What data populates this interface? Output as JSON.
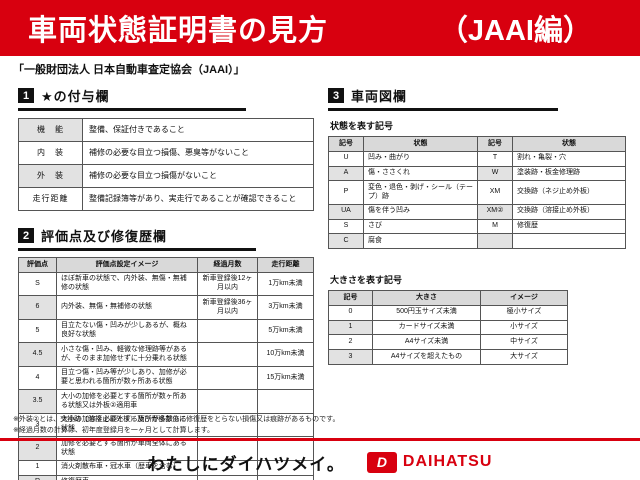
{
  "header": {
    "title": "車両状態証明書の見方",
    "edition": "（JAAI編）"
  },
  "subtitle": "「一般財団法人 日本自動車査定協会（JAAI）」",
  "section1": {
    "number": "1",
    "title": "★の付与欄",
    "table": {
      "rows": [
        [
          "機　能",
          "整備、保証付きであること"
        ],
        [
          "内　装",
          "補修の必要な目立つ損傷、悪臭等がないこと"
        ],
        [
          "外　装",
          "補修の必要な目立つ損傷がないこと"
        ],
        [
          "走行距離",
          "整備記録簿等があり、実走行であることが確認できること"
        ]
      ]
    }
  },
  "section2": {
    "number": "2",
    "title": "評価点及び修復歴欄",
    "table": {
      "headers": [
        "評価点",
        "評価点設定イメージ",
        "経過月数",
        "走行距離"
      ],
      "rows": [
        [
          "S",
          "ほぼ新車の状態で、内外装、無傷・無補修の状態",
          "新車登録後12ヶ月以内",
          "1万km未満"
        ],
        [
          "6",
          "内外装、無傷・無補修の状態",
          "新車登録後36ヶ月以内",
          "3万km未満"
        ],
        [
          "5",
          "目立たない傷・凹みが少しあるが、概ね良好な状態",
          "",
          "5万km未満"
        ],
        [
          "4.5",
          "小さな傷・凹み、軽微な修理跡等があるが、そのまま加修せずに十分乗れる状態",
          "",
          "10万km未満"
        ],
        [
          "4",
          "目立つ傷・凹み等が少しあり、加修が必要と思われる箇所が数ヶ所ある状態",
          "",
          "15万km未満"
        ],
        [
          "3.5",
          "大小の加修を必要とする箇所が数ヶ所ある状態又は外板②適用車",
          "",
          ""
        ],
        [
          "3",
          "大小の加修を必要とする箇所が多数ある状態",
          "",
          ""
        ],
        [
          "2",
          "加修を必要とする箇所が車両全体にある状態",
          "",
          ""
        ],
        [
          "1",
          "消火剤散布車・冠水車（歴車を含む）",
          "",
          ""
        ],
        [
          "R",
          "修復歴車",
          "",
          ""
        ]
      ]
    }
  },
  "section3": {
    "number": "3",
    "title": "車両図欄",
    "symbols_title": "状態を表す記号",
    "symbols_table": {
      "headers": [
        "記号",
        "状態",
        "記号",
        "状態"
      ],
      "rows": [
        [
          "U",
          "凹み・曲がり",
          "T",
          "割れ・亀裂・穴"
        ],
        [
          "A",
          "傷・ささくれ",
          "W",
          "塗装跡・板金修理跡"
        ],
        [
          "P",
          "変色・退色・剥げ・シール（テープ）跡",
          "XM",
          "交換跡（ネジ止め外板）"
        ],
        [
          "UA",
          "傷を伴う凹み",
          "XM②",
          "交換跡（溶接止め外板）"
        ],
        [
          "S",
          "さび",
          "M",
          "修復歴"
        ],
        [
          "C",
          "腐食",
          "",
          ""
        ]
      ]
    },
    "size_title": "大きさを表す記号",
    "size_table": {
      "headers": [
        "記号",
        "大きさ",
        "イメージ"
      ],
      "rows": [
        [
          "0",
          "500円玉サイズ未満",
          "極小サイズ"
        ],
        [
          "1",
          "カードサイズ未満",
          "小サイズ"
        ],
        [
          "2",
          "A4サイズ未満",
          "中サイズ"
        ],
        [
          "3",
          "A4サイズを超えたもの",
          "大サイズ"
        ]
      ]
    }
  },
  "notes": [
    "※外装②とは、交換跡（溶接止め外板）及び骨格部位に修復歴をとらない損傷又は痕跡があるものです。",
    "※経過月数の計算は、初年度登録月を一ヶ月として計算します。"
  ],
  "footer": {
    "slogan": "わたしにダイハツメイ。",
    "brand": "DAIHATSU",
    "brand_initial": "D"
  },
  "colors": {
    "accent_red": "#d8000f",
    "header_gray": "#d9d9d9",
    "alt_row_gray": "#e2e2e2"
  }
}
